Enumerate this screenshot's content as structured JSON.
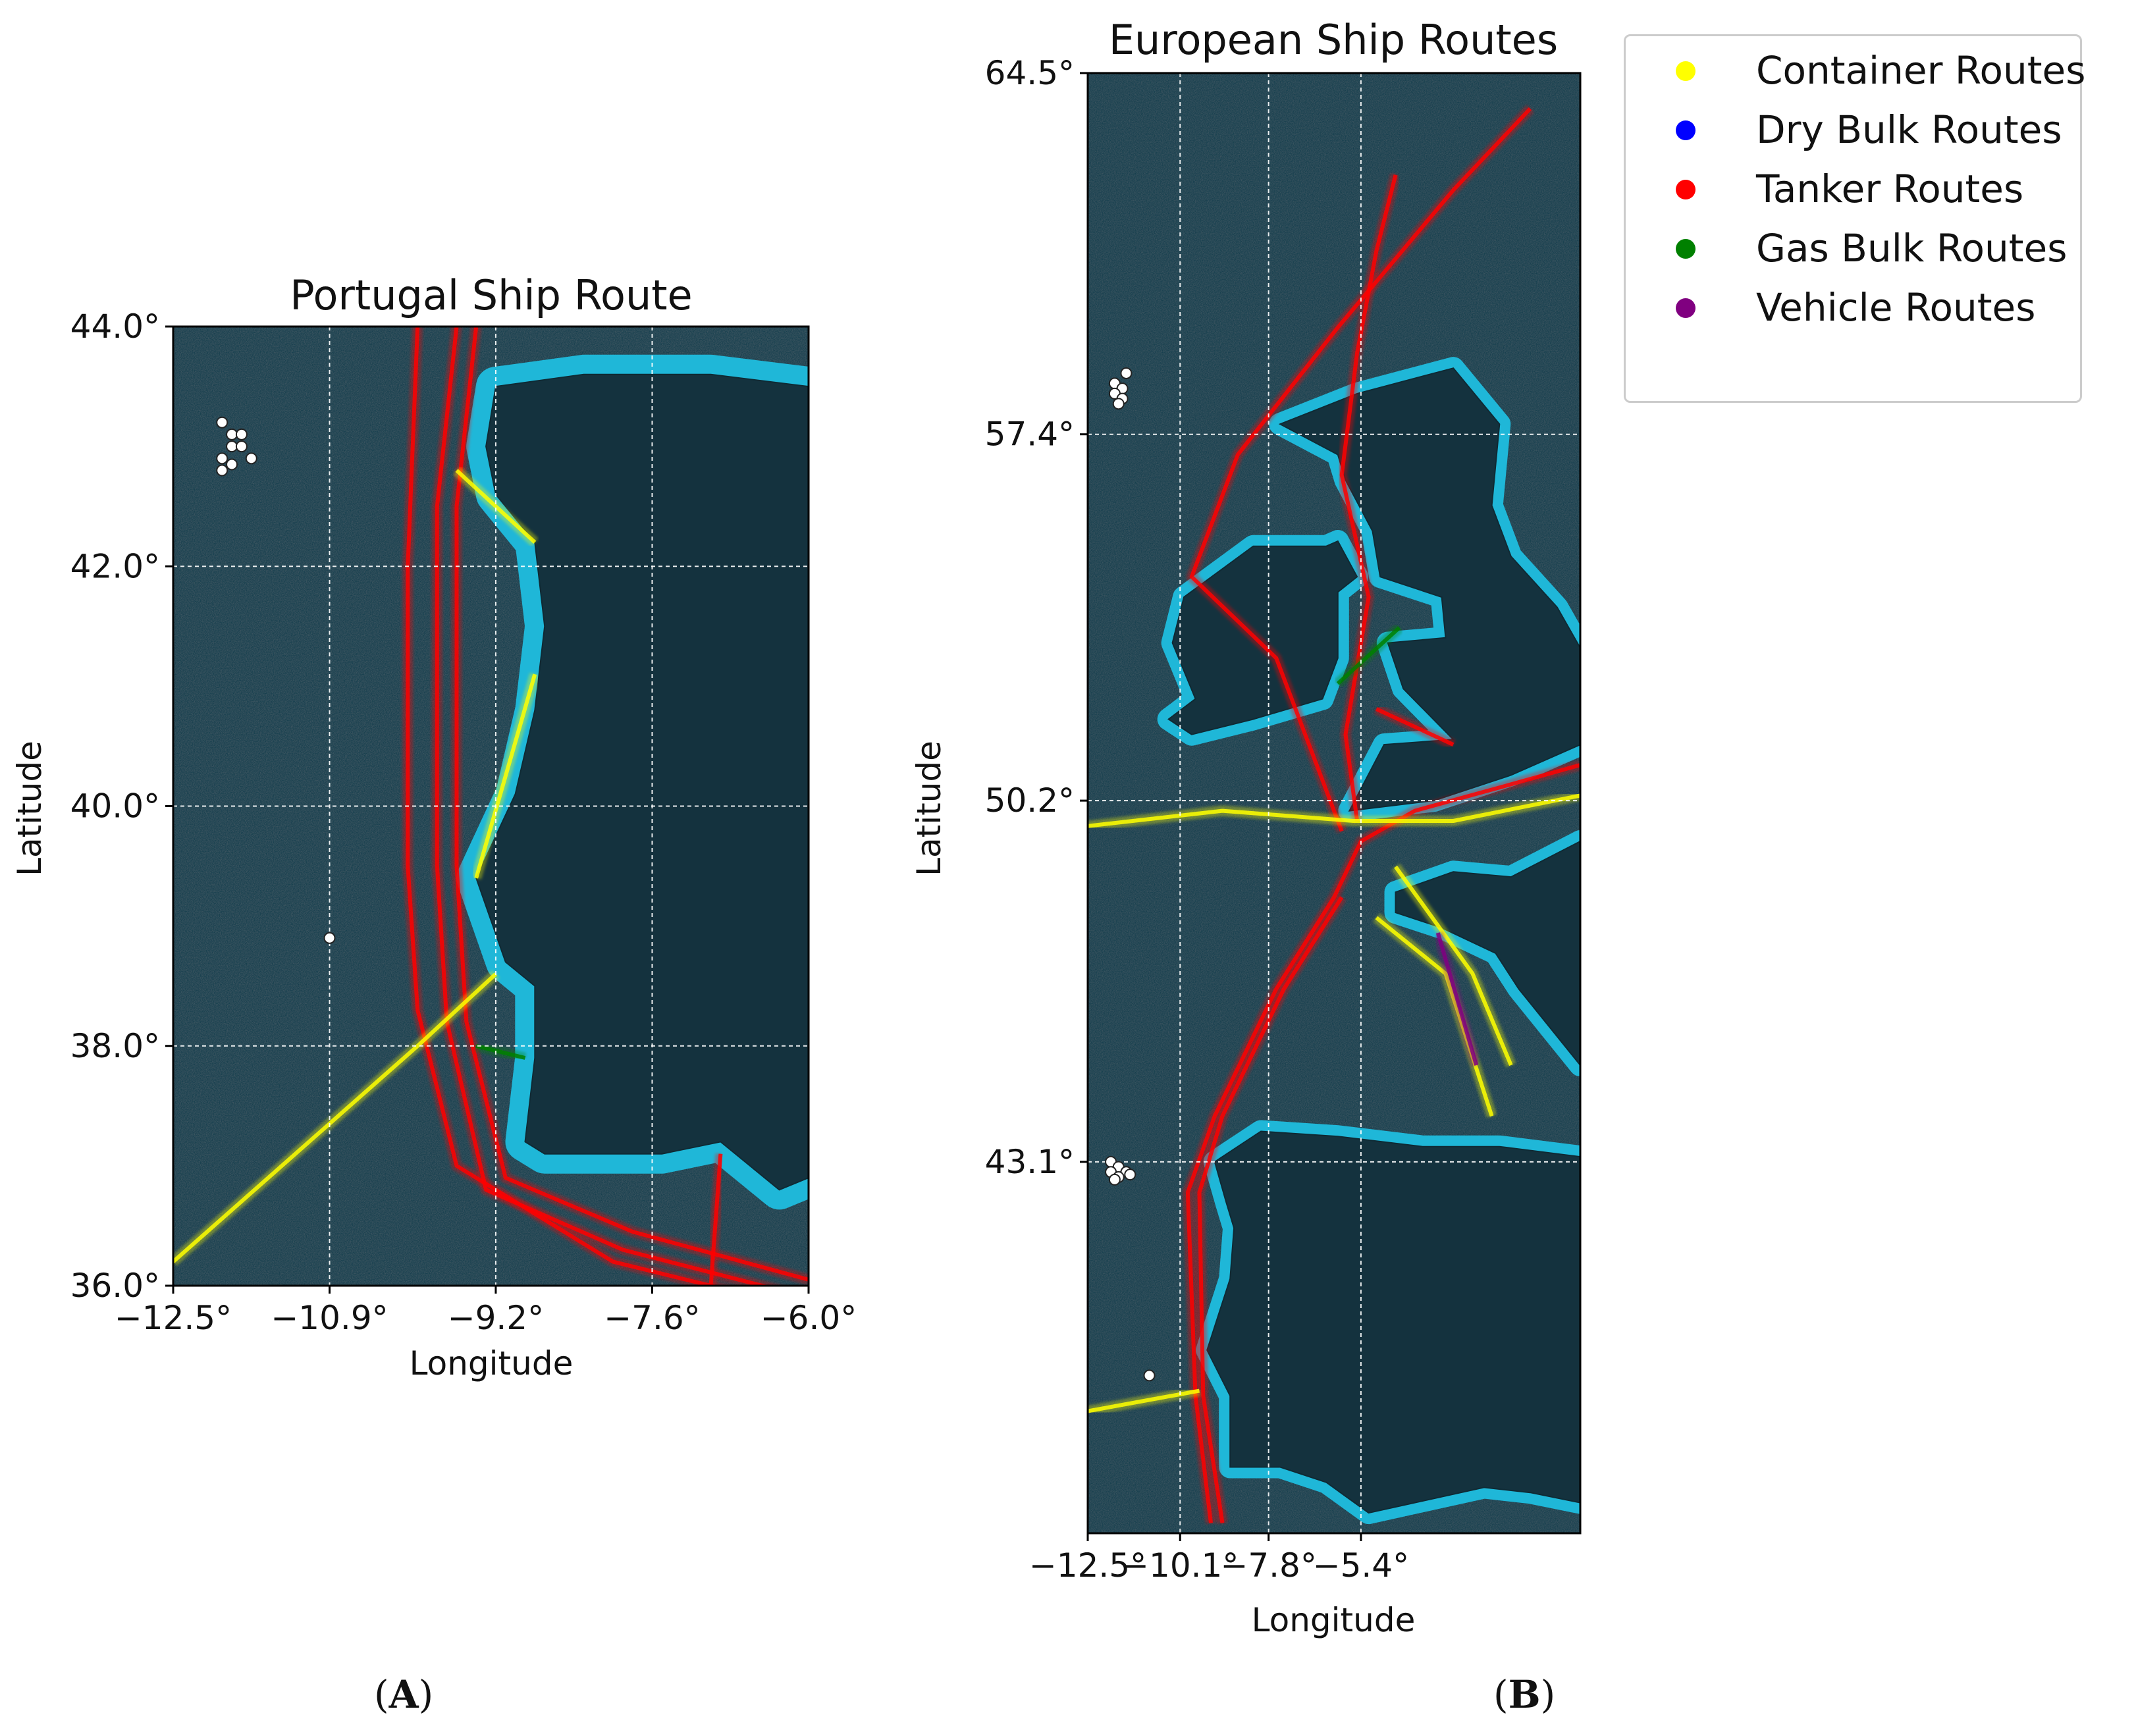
{
  "captions": {
    "a": "A",
    "b": "B"
  },
  "legend": [
    {
      "label": "Container Routes",
      "color": "#ffff00"
    },
    {
      "label": "Dry Bulk Routes",
      "color": "#0000ff"
    },
    {
      "label": "Tanker Routes",
      "color": "#ff0000"
    },
    {
      "label": "Gas Bulk Routes",
      "color": "#008000"
    },
    {
      "label": "Vehicle Routes",
      "color": "#800080"
    }
  ],
  "colors": {
    "sea": "#163f4e",
    "shelf": "#1fb7d8",
    "land": "#14323e",
    "grid": "#ffffff"
  },
  "maps": [
    {
      "id": "portugal",
      "title": "Portugal Ship Route",
      "xlabel": "Longitude",
      "ylabel": "Latitude",
      "xlim": [
        -12.5,
        -6.0
      ],
      "ylim": [
        36.0,
        44.0
      ],
      "xticks": [
        -12.5,
        -10.9,
        -9.2,
        -7.6,
        -6.0
      ],
      "yticks": [
        36.0,
        38.0,
        40.0,
        42.0,
        44.0
      ],
      "xtick_labels": [
        "−12.5°",
        "−10.9°",
        "−9.2°",
        "−7.6°",
        "−6.0°"
      ],
      "ytick_labels": [
        "36.0°",
        "38.0°",
        "40.0°",
        "42.0°",
        "44.0°"
      ],
      "grid": true,
      "land": [
        [
          [
            -9.2,
            43.5
          ],
          [
            -8.3,
            43.6
          ],
          [
            -7.0,
            43.6
          ],
          [
            -6.0,
            43.5
          ],
          [
            -6.0,
            36.9
          ],
          [
            -6.3,
            36.8
          ],
          [
            -6.9,
            37.2
          ],
          [
            -7.5,
            37.1
          ],
          [
            -8.1,
            37.1
          ],
          [
            -8.7,
            37.1
          ],
          [
            -8.9,
            37.2
          ],
          [
            -8.8,
            37.9
          ],
          [
            -8.8,
            38.5
          ],
          [
            -9.1,
            38.7
          ],
          [
            -9.4,
            39.4
          ],
          [
            -9.0,
            40.1
          ],
          [
            -8.8,
            40.8
          ],
          [
            -8.7,
            41.5
          ],
          [
            -8.8,
            42.2
          ],
          [
            -9.2,
            42.6
          ],
          [
            -9.3,
            43.0
          ],
          [
            -9.2,
            43.5
          ]
        ]
      ],
      "routes": [
        {
          "type": "Tanker Routes",
          "points": [
            [
              -9.6,
              44.0
            ],
            [
              -9.8,
              42.5
            ],
            [
              -9.8,
              39.5
            ],
            [
              -9.7,
              38.2
            ],
            [
              -9.3,
              36.8
            ],
            [
              -7.9,
              36.3
            ],
            [
              -6.0,
              35.9
            ]
          ]
        },
        {
          "type": "Tanker Routes",
          "points": [
            [
              -9.4,
              44.0
            ],
            [
              -9.6,
              42.5
            ],
            [
              -9.6,
              39.5
            ],
            [
              -9.5,
              38.2
            ],
            [
              -9.1,
              36.9
            ],
            [
              -7.8,
              36.45
            ],
            [
              -6.0,
              36.05
            ]
          ]
        },
        {
          "type": "Tanker Routes",
          "points": [
            [
              -10.0,
              44.0
            ],
            [
              -10.1,
              42.0
            ],
            [
              -10.1,
              39.5
            ],
            [
              -10.0,
              38.3
            ],
            [
              -9.6,
              37.0
            ],
            [
              -8.0,
              36.2
            ],
            [
              -6.5,
              35.9
            ]
          ]
        },
        {
          "type": "Container Routes",
          "points": [
            [
              -12.5,
              36.2
            ],
            [
              -10.0,
              38.0
            ],
            [
              -9.2,
              38.6
            ]
          ]
        },
        {
          "type": "Container Routes",
          "points": [
            [
              -9.4,
              39.4
            ],
            [
              -8.8,
              41.1
            ]
          ]
        },
        {
          "type": "Container Routes",
          "points": [
            [
              -9.6,
              42.8
            ],
            [
              -8.8,
              42.2
            ]
          ]
        },
        {
          "type": "Tanker Routes",
          "points": [
            [
              -7.0,
              36.0
            ],
            [
              -6.9,
              37.1
            ]
          ]
        },
        {
          "type": "Gas Bulk Routes",
          "points": [
            [
              -9.4,
              38.0
            ],
            [
              -8.9,
              37.9
            ]
          ]
        }
      ],
      "markers": [
        [
          -12.0,
          43.2
        ],
        [
          -11.9,
          43.1
        ],
        [
          -11.8,
          43.1
        ],
        [
          -11.9,
          43.0
        ],
        [
          -11.8,
          43.0
        ],
        [
          -12.0,
          42.9
        ],
        [
          -11.7,
          42.9
        ],
        [
          -11.9,
          42.85
        ],
        [
          -12.0,
          42.8
        ],
        [
          -10.9,
          38.9
        ]
      ]
    },
    {
      "id": "europe",
      "title": "European Ship Routes",
      "xlabel": "Longitude",
      "ylabel": "Latitude",
      "xlim": [
        -12.5,
        0.3
      ],
      "ylim": [
        35.8,
        64.5
      ],
      "xticks": [
        -12.5,
        -10.1,
        -7.8,
        -5.4
      ],
      "yticks": [
        43.1,
        50.2,
        57.4,
        64.5
      ],
      "xtick_labels": [
        "−12.5°",
        "−10.1°",
        "−7.8°",
        "−5.4°"
      ],
      "ytick_labels": [
        "43.1°",
        "50.2°",
        "57.4°",
        "64.5°"
      ],
      "grid": true,
      "land": [
        [
          [
            -7.5,
            57.6
          ],
          [
            -5.5,
            58.2
          ],
          [
            -3.0,
            58.7
          ],
          [
            -1.8,
            57.6
          ],
          [
            -2.0,
            56.0
          ],
          [
            -1.5,
            55.0
          ],
          [
            -0.3,
            54.0
          ],
          [
            0.3,
            53.2
          ],
          [
            0.3,
            51.3
          ],
          [
            -1.5,
            50.7
          ],
          [
            -3.5,
            50.2
          ],
          [
            -5.7,
            50.0
          ],
          [
            -4.8,
            51.3
          ],
          [
            -3.0,
            51.4
          ],
          [
            -4.3,
            52.4
          ],
          [
            -4.7,
            53.3
          ],
          [
            -3.2,
            53.4
          ],
          [
            -3.3,
            54.2
          ],
          [
            -4.9,
            54.6
          ],
          [
            -5.1,
            55.5
          ],
          [
            -5.8,
            56.5
          ],
          [
            -6.0,
            57.0
          ],
          [
            -7.5,
            57.6
          ]
        ],
        [
          [
            -6.0,
            55.3
          ],
          [
            -6.3,
            55.2
          ],
          [
            -8.2,
            55.2
          ],
          [
            -10.0,
            54.2
          ],
          [
            -10.3,
            53.3
          ],
          [
            -9.7,
            52.2
          ],
          [
            -10.4,
            51.8
          ],
          [
            -9.8,
            51.5
          ],
          [
            -8.2,
            51.8
          ],
          [
            -6.4,
            52.2
          ],
          [
            -6.0,
            53.0
          ],
          [
            -6.0,
            54.3
          ],
          [
            -5.5,
            54.6
          ],
          [
            -6.0,
            55.3
          ]
        ],
        [
          [
            -4.5,
            48.4
          ],
          [
            -3.0,
            48.8
          ],
          [
            -1.5,
            48.7
          ],
          [
            0.3,
            49.4
          ],
          [
            0.3,
            45.0
          ],
          [
            -1.3,
            46.5
          ],
          [
            -1.9,
            47.2
          ],
          [
            -3.3,
            47.7
          ],
          [
            -4.5,
            48.0
          ],
          [
            -4.5,
            48.4
          ]
        ],
        [
          [
            -9.2,
            43.1
          ],
          [
            -8.0,
            43.7
          ],
          [
            -6.0,
            43.6
          ],
          [
            -3.8,
            43.4
          ],
          [
            -1.8,
            43.4
          ],
          [
            0.3,
            43.2
          ],
          [
            0.3,
            36.4
          ],
          [
            -1.0,
            36.6
          ],
          [
            -2.2,
            36.7
          ],
          [
            -5.2,
            36.2
          ],
          [
            -6.3,
            36.8
          ],
          [
            -7.5,
            37.1
          ],
          [
            -8.8,
            37.1
          ],
          [
            -8.8,
            38.5
          ],
          [
            -9.4,
            39.4
          ],
          [
            -8.8,
            40.8
          ],
          [
            -8.7,
            41.8
          ],
          [
            -8.9,
            42.3
          ],
          [
            -9.2,
            43.1
          ]
        ]
      ],
      "routes": [
        {
          "type": "Tanker Routes",
          "points": [
            [
              -9.3,
              36.0
            ],
            [
              -9.7,
              38.5
            ],
            [
              -9.9,
              42.5
            ],
            [
              -9.2,
              44.0
            ],
            [
              -7.6,
              46.5
            ],
            [
              -6.1,
              48.3
            ],
            [
              -5.4,
              49.4
            ],
            [
              -4.0,
              50.0
            ],
            [
              -1.6,
              50.5
            ],
            [
              0.3,
              50.9
            ]
          ]
        },
        {
          "type": "Tanker Routes",
          "points": [
            [
              -9.0,
              36.0
            ],
            [
              -9.5,
              38.5
            ],
            [
              -9.6,
              42.5
            ],
            [
              -9.0,
              44.0
            ],
            [
              -7.4,
              46.5
            ],
            [
              -5.9,
              48.3
            ]
          ]
        },
        {
          "type": "Tanker Routes",
          "points": [
            [
              -5.9,
              49.6
            ],
            [
              -6.6,
              51.0
            ],
            [
              -7.6,
              53.0
            ],
            [
              -9.8,
              54.6
            ],
            [
              -8.6,
              57.0
            ],
            [
              -6.0,
              59.5
            ],
            [
              -3.0,
              62.2
            ],
            [
              -1.0,
              63.8
            ]
          ]
        },
        {
          "type": "Tanker Routes",
          "points": [
            [
              -5.5,
              49.8
            ],
            [
              -5.8,
              51.5
            ],
            [
              -5.2,
              54.2
            ],
            [
              -5.9,
              56.6
            ],
            [
              -5.5,
              59.0
            ],
            [
              -5.0,
              61.0
            ],
            [
              -4.5,
              62.5
            ]
          ]
        },
        {
          "type": "Container Routes",
          "points": [
            [
              -12.5,
              49.7
            ],
            [
              -9.0,
              50.0
            ],
            [
              -5.6,
              49.8
            ],
            [
              -3.0,
              49.8
            ],
            [
              0.3,
              50.3
            ]
          ]
        },
        {
          "type": "Container Routes",
          "points": [
            [
              -4.5,
              48.9
            ],
            [
              -2.5,
              46.8
            ],
            [
              -1.5,
              45.0
            ]
          ]
        },
        {
          "type": "Container Routes",
          "points": [
            [
              -5.0,
              47.9
            ],
            [
              -3.2,
              46.8
            ],
            [
              -2.0,
              44.0
            ]
          ]
        },
        {
          "type": "Tanker Routes",
          "points": [
            [
              -5.0,
              52.0
            ],
            [
              -3.0,
              51.3
            ]
          ]
        },
        {
          "type": "Vehicle Routes",
          "points": [
            [
              -3.4,
              47.6
            ],
            [
              -2.4,
              45.0
            ]
          ]
        },
        {
          "type": "Gas Bulk Routes",
          "points": [
            [
              -6.0,
              52.5
            ],
            [
              -4.4,
              53.6
            ]
          ]
        },
        {
          "type": "Container Routes",
          "points": [
            [
              -12.5,
              38.2
            ],
            [
              -9.6,
              38.6
            ]
          ]
        }
      ],
      "markers": [
        [
          -11.5,
          58.6
        ],
        [
          -11.8,
          58.4
        ],
        [
          -11.6,
          58.3
        ],
        [
          -11.8,
          58.2
        ],
        [
          -11.6,
          58.1
        ],
        [
          -11.7,
          58.0
        ],
        [
          -11.9,
          43.1
        ],
        [
          -11.7,
          43.0
        ],
        [
          -11.5,
          42.9
        ],
        [
          -11.9,
          42.9
        ],
        [
          -11.7,
          42.8
        ],
        [
          -11.4,
          42.85
        ],
        [
          -11.8,
          42.75
        ],
        [
          -10.9,
          38.9
        ]
      ]
    }
  ]
}
